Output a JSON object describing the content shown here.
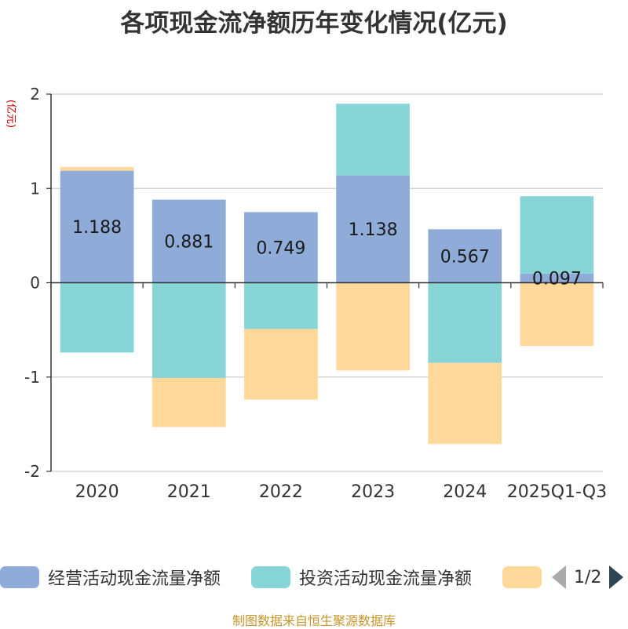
{
  "chart_data": {
    "type": "bar",
    "stacked": true,
    "title": "各项现金流净额历年变化情况(亿元)",
    "ylabel": "(亿元)",
    "xlabel": "",
    "ylim": [
      -2,
      2
    ],
    "yticks": [
      2,
      1,
      0,
      -1,
      -2
    ],
    "categories": [
      "2020",
      "2021",
      "2022",
      "2023",
      "2024",
      "2025Q1-Q3"
    ],
    "series": [
      {
        "name": "经营活动现金流量净额",
        "color": "#8fabd8",
        "values": [
          1.188,
          0.881,
          0.749,
          1.138,
          0.567,
          0.097
        ],
        "labels": [
          "1.188",
          "0.881",
          "0.749",
          "1.138",
          "0.567",
          "0.097"
        ]
      },
      {
        "name": "投资活动现金流量净额",
        "color": "#87d5d7",
        "values": [
          -0.74,
          -1.01,
          -0.49,
          0.76,
          -0.85,
          0.82
        ]
      },
      {
        "name": "",
        "color": "#ffd89a",
        "values": [
          0.04,
          -0.52,
          -0.75,
          -0.93,
          -0.86,
          -0.67
        ]
      }
    ]
  },
  "legend": {
    "items": [
      "经营活动现金流量净额",
      "投资活动现金流量净额"
    ],
    "page": "1/2"
  },
  "source": "制图数据来自恒生聚源数据库"
}
